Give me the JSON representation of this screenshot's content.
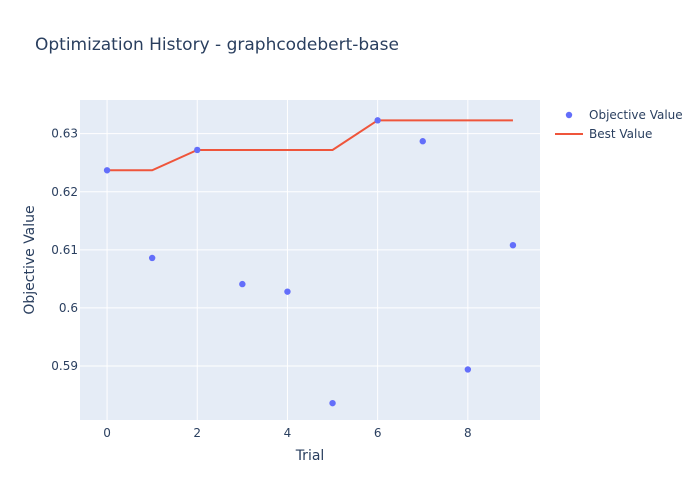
{
  "chart_data": {
    "type": "scatter",
    "title": "Optimization History - graphcodebert-base",
    "xlabel": "Trial",
    "ylabel": "Objective Value",
    "xlim": [
      -0.6,
      9.6
    ],
    "ylim": [
      0.5807,
      0.6358
    ],
    "x_ticks": [
      0,
      2,
      4,
      6,
      8
    ],
    "x_tick_labels": [
      "0",
      "2",
      "4",
      "6",
      "8"
    ],
    "y_ticks": [
      0.59,
      0.6,
      0.61,
      0.62,
      0.63
    ],
    "y_tick_labels": [
      "0.59",
      "0.6",
      "0.61",
      "0.62",
      "0.63"
    ],
    "grid": true,
    "legend_position": "top-right",
    "plot_background": "#e5ecf6",
    "series": [
      {
        "name": "Objective Value",
        "mode": "markers",
        "color": "#636efa",
        "x": [
          0,
          1,
          2,
          3,
          4,
          5,
          6,
          7,
          8,
          9
        ],
        "y": [
          0.6237,
          0.6086,
          0.6272,
          0.6041,
          0.6028,
          0.5836,
          0.6323,
          0.6287,
          0.5894,
          0.6108
        ]
      },
      {
        "name": "Best Value",
        "mode": "lines",
        "color": "#ef553b",
        "x": [
          0,
          1,
          2,
          3,
          4,
          5,
          6,
          7,
          8,
          9
        ],
        "y": [
          0.6237,
          0.6237,
          0.6272,
          0.6272,
          0.6272,
          0.6272,
          0.6323,
          0.6323,
          0.6323,
          0.6323
        ]
      }
    ]
  }
}
